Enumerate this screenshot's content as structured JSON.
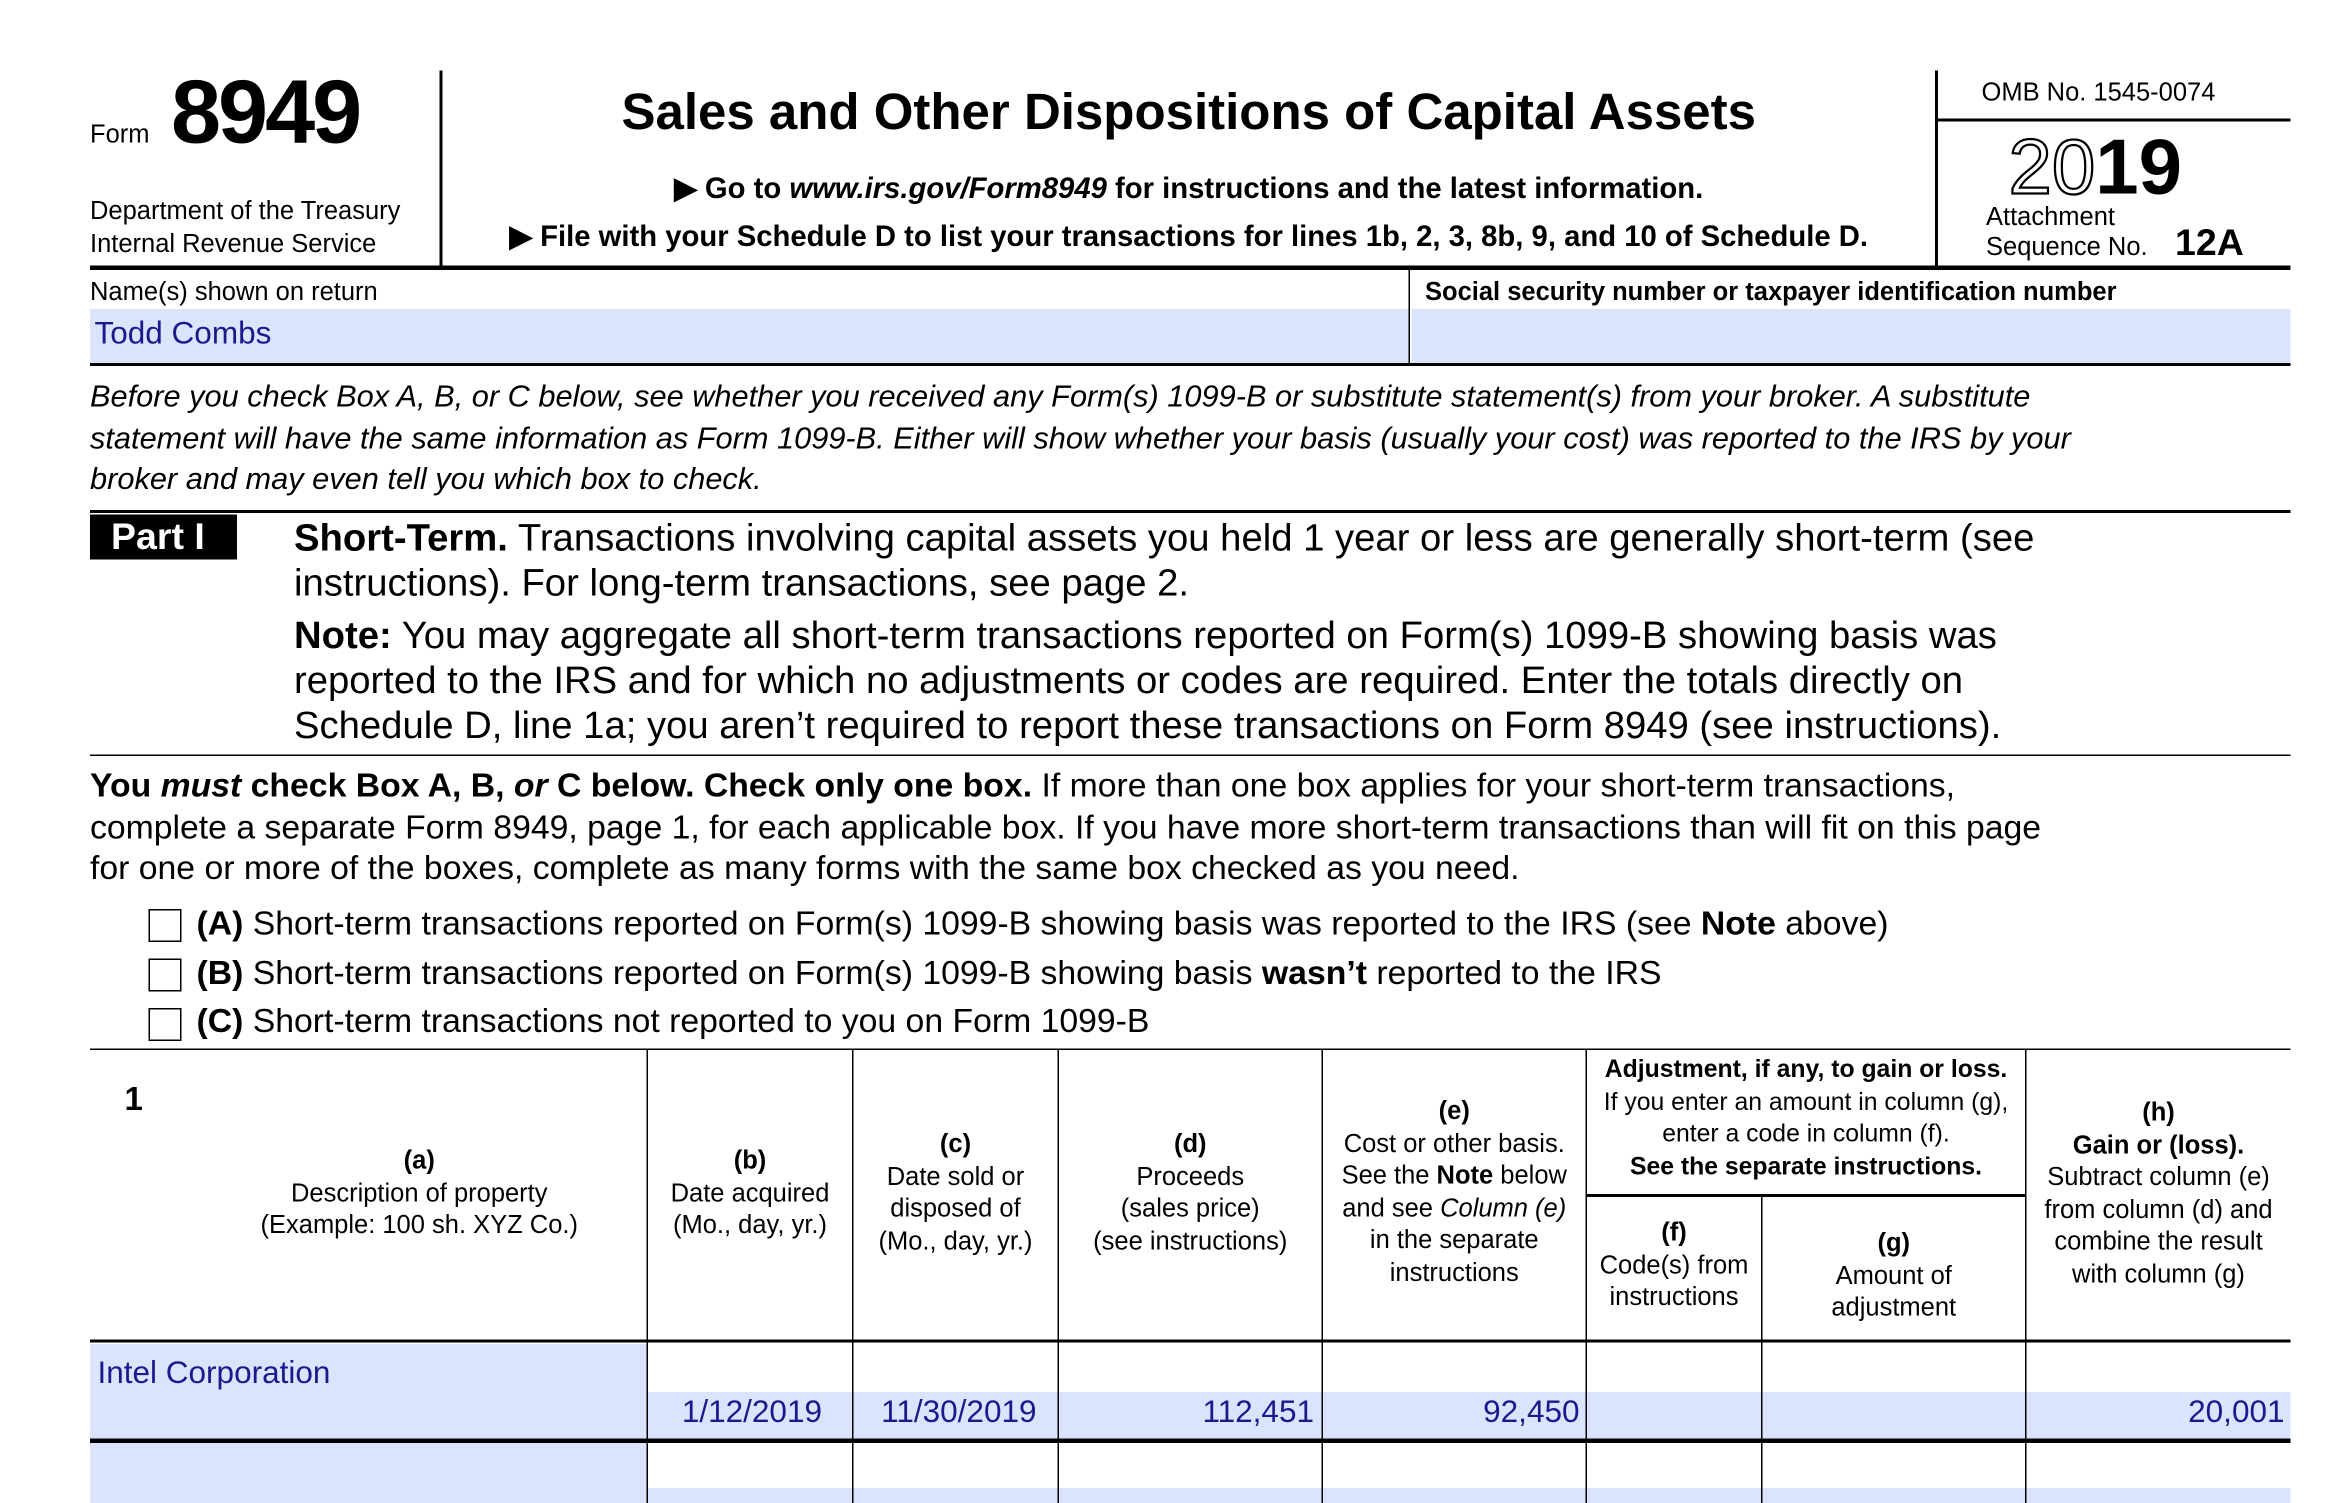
{
  "header": {
    "form_label": "Form",
    "form_number": "8949",
    "dept_line1": "Department of the Treasury",
    "dept_line2": "Internal Revenue Service",
    "title": "Sales and Other Dispositions of Capital Assets",
    "goto_prefix": "Go to ",
    "goto_url": "www.irs.gov/Form8949",
    "goto_suffix": " for instructions and the latest information.",
    "file_with": "File with your Schedule D to list your transactions for lines 1b, 2, 3, 8b, 9, and 10 of Schedule D.",
    "omb": "OMB No. 1545-0074",
    "year_outline": "20",
    "year_bold": "19",
    "attachment": "Attachment",
    "sequence_label": "Sequence No.",
    "sequence_number": "12A"
  },
  "identity": {
    "name_label": "Name(s) shown on return",
    "name_value": "Todd Combs",
    "ssn_label": "Social security number or taxpayer identification number",
    "ssn_value": ""
  },
  "intro": {
    "line1": "Before you check Box A, B, or C below, see whether you received any Form(s) 1099-B or substitute statement(s) from your broker. A substitute",
    "line2": "statement will have the same information as Form 1099-B. Either will show whether your basis (usually your cost) was reported to the IRS by your",
    "line3": "broker and may even tell you which box to check."
  },
  "part1": {
    "badge": "Part I",
    "heading_bold": "Short-Term.",
    "heading_rest": " Transactions involving capital assets you held 1 year or less are generally short-term (see",
    "heading_line2": "instructions). For long-term transactions, see page 2.",
    "note_bold": "Note:",
    "note_line1": " You may aggregate all short-term transactions reported on Form(s) 1099-B showing basis was",
    "note_line2": "reported to the IRS and for which no adjustments or codes are required. Enter the totals directly on",
    "note_line3": "Schedule D, line 1a; you aren’t required to report these transactions on Form 8949 (see instructions)."
  },
  "must": {
    "b1": "You ",
    "i1": "must",
    "b2": " check Box A, B, ",
    "i2": "or",
    "b3": " C below. Check only one box.",
    "rest1": " If more than one box applies for your short-term transactions,",
    "line2": "complete a separate Form 8949, page 1, for each applicable box. If you have more short-term transactions than will fit on this page",
    "line3": "for one or more of the boxes, complete as many forms with the same box checked as you need."
  },
  "boxes": [
    {
      "letter": "(A)",
      "text": " Short-term transactions reported on Form(s) 1099-B showing basis was reported to the IRS (see ",
      "bold": "Note",
      "after": " above)",
      "checked": false
    },
    {
      "letter": "(B)",
      "text": " Short-term transactions reported on Form(s) 1099-B showing basis ",
      "bold": "wasn’t",
      "after": " reported to the IRS",
      "checked": false
    },
    {
      "letter": "(C)",
      "text": " Short-term transactions not reported to you on Form 1099-B",
      "bold": "",
      "after": "",
      "checked": false
    }
  ],
  "table": {
    "line_number": "1",
    "col_a": [
      "(a)",
      "Description of property",
      "(Example: 100 sh. XYZ Co.)"
    ],
    "col_b": [
      "(b)",
      "Date acquired",
      "(Mo., day, yr.)"
    ],
    "col_c": [
      "(c)",
      "Date sold or",
      "disposed of",
      "(Mo., day, yr.)"
    ],
    "col_d": [
      "(d)",
      "Proceeds",
      "(sales price)",
      "(see instructions)"
    ],
    "col_e": {
      "l1": "(e)",
      "l2": "Cost or other basis.",
      "l3a": "See the ",
      "l3b": "Note",
      "l3c": " below",
      "l4a": "and see ",
      "l4b": "Column (e)",
      "l5": "in the separate",
      "l6": "instructions"
    },
    "adj": {
      "l1": "Adjustment, if any, to gain or loss.",
      "l2": "If you enter an amount in column (g),",
      "l3": "enter a code in column (f).",
      "l4": "See the separate instructions."
    },
    "col_f": [
      "(f)",
      "Code(s) from",
      "instructions"
    ],
    "col_g": [
      "(g)",
      "Amount of",
      "adjustment"
    ],
    "col_h": [
      "(h)",
      "Gain or (loss).",
      "Subtract column (e)",
      "from column (d) and",
      "combine the result",
      "with column (g)"
    ],
    "rows": [
      {
        "description": "Intel Corporation",
        "date_acquired": "1/12/2019",
        "date_sold": "11/30/2019",
        "proceeds": "112,451",
        "cost": "92,450",
        "code": "",
        "adjustment": "",
        "gain": "20,001"
      },
      {
        "description": "",
        "date_acquired": "",
        "date_sold": "",
        "proceeds": "",
        "cost": "",
        "code": "",
        "adjustment": "",
        "gain": ""
      }
    ]
  },
  "colors": {
    "fill_bg": "#dce3fd",
    "fill_text": "#1a1a8c"
  }
}
